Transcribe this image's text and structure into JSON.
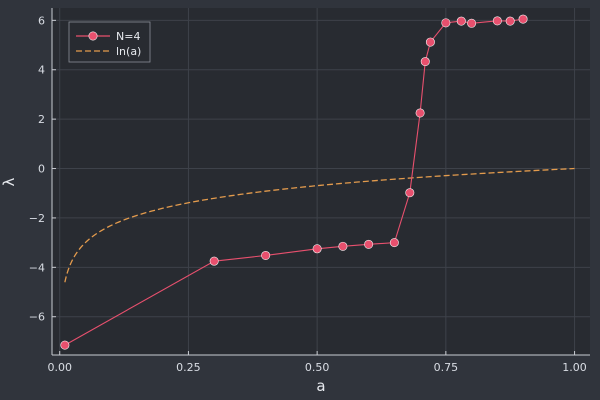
{
  "chart_data": {
    "type": "line",
    "xlabel": "a",
    "ylabel": "λ",
    "xlim": [
      -0.015,
      1.03
    ],
    "ylim": [
      -7.55,
      6.5
    ],
    "xticks": [
      0.0,
      0.25,
      0.5,
      0.75,
      1.0
    ],
    "xtick_labels": [
      "0.00",
      "0.25",
      "0.50",
      "0.75",
      "1.00"
    ],
    "yticks": [
      -6,
      -4,
      -2,
      0,
      2,
      4,
      6
    ],
    "ytick_labels": [
      "−6",
      "−4",
      "−2",
      "0",
      "2",
      "4",
      "6"
    ],
    "grid": true,
    "legend_position": "top-left",
    "series": [
      {
        "name": "N=4",
        "style": "solid-markers",
        "color": "#e8506e",
        "x": [
          0.01,
          0.3,
          0.4,
          0.5,
          0.55,
          0.6,
          0.65,
          0.68,
          0.7,
          0.71,
          0.72,
          0.75,
          0.78,
          0.8,
          0.85,
          0.875,
          0.9
        ],
        "y": [
          -7.15,
          -3.75,
          -3.52,
          -3.25,
          -3.15,
          -3.07,
          -3.0,
          -0.98,
          2.25,
          4.33,
          5.12,
          5.9,
          5.97,
          5.88,
          5.98,
          5.97,
          6.05
        ]
      },
      {
        "name": "ln(a)",
        "style": "dashed",
        "color": "#e39b4d",
        "function": "ln",
        "domain": [
          0.01,
          1.0
        ]
      }
    ]
  }
}
